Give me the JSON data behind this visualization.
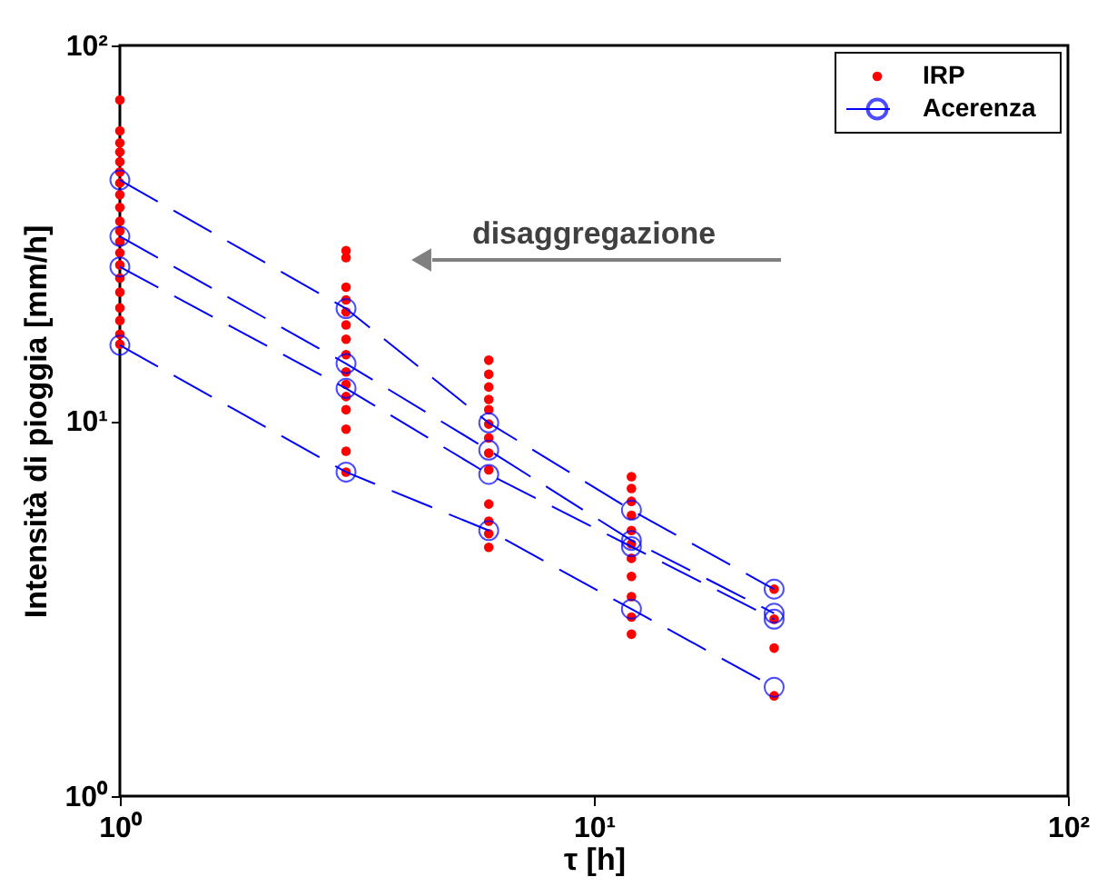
{
  "chart_data": {
    "type": "scatter",
    "xlabel": "τ [h]",
    "ylabel": "Intensità di pioggia [mm/h]",
    "log": "xy",
    "xlim": [
      1,
      100
    ],
    "ylim": [
      1,
      100
    ],
    "xticks": [
      {
        "value": 1,
        "label": "10⁰"
      },
      {
        "value": 10,
        "label": "10¹"
      },
      {
        "value": 100,
        "label": "10²"
      }
    ],
    "yticks": [
      {
        "value": 1,
        "label": "10⁰"
      },
      {
        "value": 10,
        "label": "10¹"
      },
      {
        "value": 100,
        "label": "10²"
      }
    ],
    "grid": false,
    "legend": "top right",
    "annotations": [
      "disaggregazione"
    ],
    "series": [
      {
        "name": "IRP",
        "color": "#ff0000",
        "marker": "circle",
        "x": [
          1,
          1,
          1,
          1,
          1,
          1,
          1,
          1,
          1,
          1,
          1,
          1,
          1,
          1,
          1,
          1,
          1,
          1,
          1,
          1,
          3,
          3,
          3,
          3,
          3,
          3,
          3,
          3,
          3,
          3,
          3,
          3,
          3,
          3,
          3,
          6,
          6,
          6,
          6,
          6,
          6,
          6,
          6,
          6,
          6,
          6,
          6,
          6,
          12,
          12,
          12,
          12,
          12,
          12,
          12,
          12,
          12,
          12,
          12,
          24,
          24,
          24,
          24
        ],
        "values": [
          71.6,
          59.2,
          55,
          52,
          49,
          46,
          43,
          40,
          37,
          34,
          32,
          30,
          28,
          26,
          24,
          22,
          20,
          18.5,
          17,
          16,
          28.4,
          27.2,
          22.7,
          21,
          19.5,
          18,
          16.5,
          15,
          13.5,
          12.5,
          11.6,
          10.7,
          9.5,
          8.3,
          7.3,
          14.5,
          13.3,
          12.3,
          11.4,
          10.7,
          9.8,
          9,
          8.2,
          7.4,
          6,
          5.4,
          5,
          4.6,
          7.1,
          6.6,
          6.1,
          5.6,
          5.1,
          4.7,
          4.3,
          3.85,
          3.4,
          3,
          2.7,
          3.56,
          2.96,
          2.48,
          1.85
        ]
      },
      {
        "name": "Acerenza",
        "type": "line",
        "color": "#0000ff",
        "marker": "circle",
        "line_style": "dashed",
        "x": [
          1,
          3,
          6,
          12,
          24
        ],
        "values": [
          43.8,
          19.9,
          9.87,
          5.78,
          3.56
        ]
      },
      {
        "type": "line",
        "color": "#0000ff",
        "marker": "circle",
        "line_style": "dashed",
        "x": [
          1,
          3,
          6,
          12,
          24
        ],
        "values": [
          31,
          14.2,
          8.35,
          4.8,
          3.07
        ]
      },
      {
        "type": "line",
        "color": "#0000ff",
        "marker": "circle",
        "line_style": "dashed",
        "x": [
          1,
          3,
          6,
          12,
          24
        ],
        "values": [
          25.7,
          12.2,
          7.2,
          4.62,
          2.96
        ]
      },
      {
        "type": "line",
        "color": "#0000ff",
        "marker": "circle",
        "line_style": "dashed",
        "x": [
          1,
          3,
          6,
          12,
          24
        ],
        "values": [
          15.9,
          7.3,
          5.1,
          3.15,
          1.95
        ]
      }
    ]
  }
}
